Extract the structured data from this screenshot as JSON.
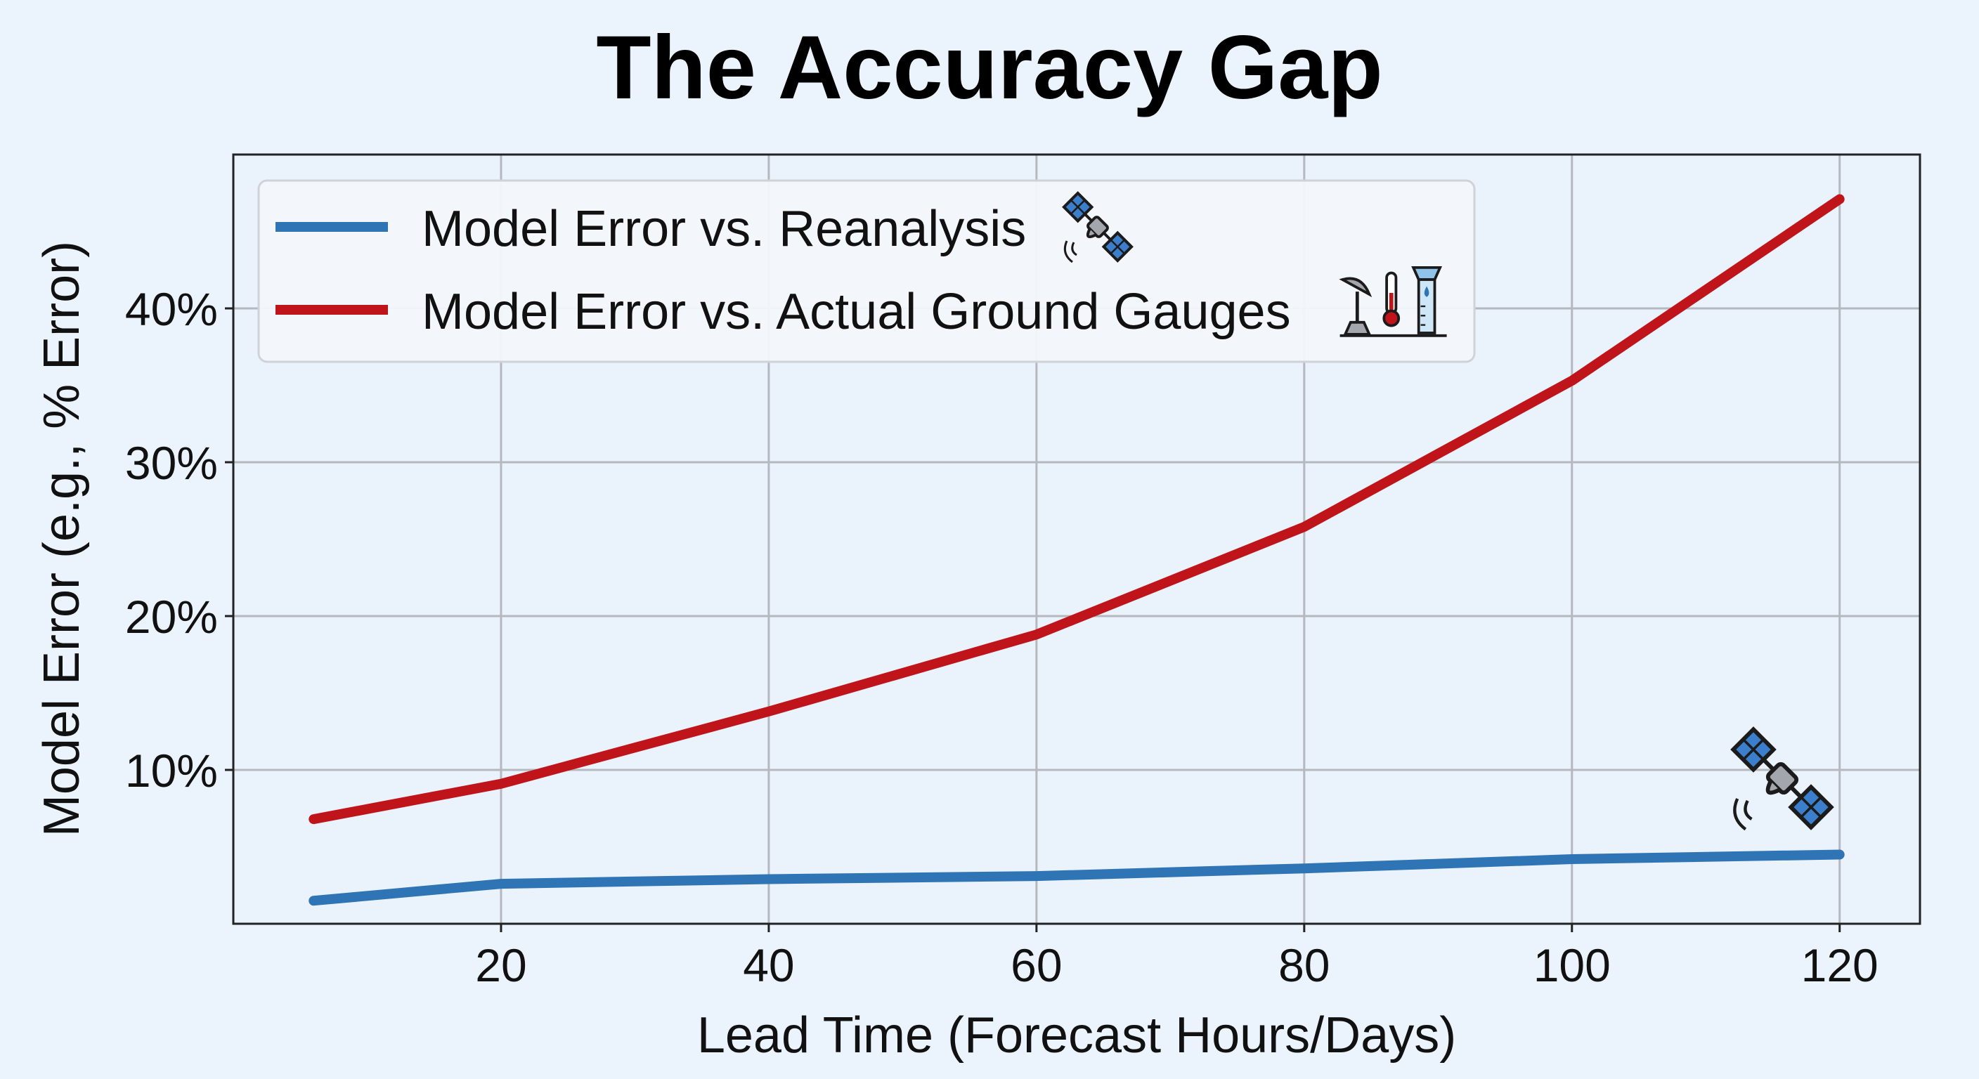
{
  "chart_data": {
    "type": "line",
    "title": "The Accuracy Gap",
    "xlabel": "Lead Time (Forecast Hours/Days)",
    "ylabel": "Model Error (e.g., % Error)",
    "xlim": [
      0,
      126
    ],
    "ylim": [
      0,
      50
    ],
    "xticks": [
      20,
      40,
      60,
      80,
      100,
      120
    ],
    "xtick_labels": [
      "20",
      "40",
      "60",
      "80",
      "100",
      "120"
    ],
    "yticks": [
      10,
      20,
      30,
      40
    ],
    "ytick_labels": [
      "10%",
      "20%",
      "30%",
      "40%"
    ],
    "grid": true,
    "legend_position": "top-left",
    "x": [
      6,
      20,
      40,
      60,
      80,
      100,
      120
    ],
    "series": [
      {
        "name": "Model Error vs. Reanalysis",
        "color": "#2f74b5",
        "icon": "satellite-icon",
        "values": [
          1.5,
          2.6,
          2.9,
          3.1,
          3.6,
          4.2,
          4.5
        ]
      },
      {
        "name": "Model Error vs. Actual Ground Gauges",
        "color": "#c0141b",
        "icon": "weather-station-icon",
        "values": [
          6.8,
          9.1,
          13.8,
          18.8,
          25.8,
          35.3,
          47.1
        ]
      }
    ],
    "annotations": [
      {
        "icon": "satellite-icon",
        "x": 114,
        "y": 8.5
      }
    ]
  }
}
